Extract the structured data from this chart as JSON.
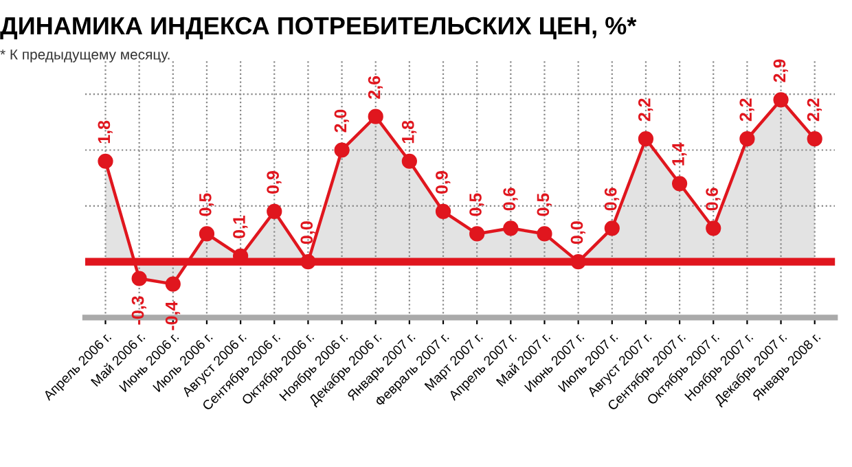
{
  "chart_data": {
    "type": "area",
    "title": "ДИНАМИКА ИНДЕКСА ПОТРЕБИТЕЛЬСКИХ ЦЕН, %*",
    "subtitle": "* К предыдущему месяцу.",
    "categories": [
      "Апрель 2006 г.",
      "Май 2006 г.",
      "Июнь 2006 г.",
      "Июль 2006 г.",
      "Август 2006 г.",
      "Сентябрь 2006 г.",
      "Октябрь 2006 г.",
      "Ноябрь 2006 г.",
      "Декабрь 2006 г.",
      "Январь 2007 г.",
      "Февраль 2007 г.",
      "Март 2007 г.",
      "Апрель 2007 г.",
      "Май 2007 г.",
      "Июнь 2007 г.",
      "Июль 2007 г.",
      "Август 2007 г.",
      "Сентябрь 2007 г.",
      "Октябрь 2007 г.",
      "Ноябрь 2007 г.",
      "Декабрь 2007 г.",
      "Январь 2008 г."
    ],
    "series": [
      {
        "color": "#e0161e",
        "values": [
          1.8,
          -0.3,
          -0.4,
          0.5,
          0.1,
          0.9,
          0.0,
          2.0,
          2.6,
          1.8,
          0.9,
          0.5,
          0.6,
          0.5,
          0.0,
          0.6,
          2.2,
          1.4,
          0.6,
          2.2,
          2.9,
          2.2
        ],
        "value_labels": [
          "1,8",
          "-0,3",
          "-0,4",
          "0,5",
          "0,1",
          "0,9",
          "0,0",
          "2,0",
          "2,6",
          "1,8",
          "0,9",
          "0,5",
          "0,6",
          "0,5",
          "0,0",
          "0,6",
          "2,2",
          "1,4",
          "0,6",
          "2,2",
          "2,9",
          "2,2"
        ]
      }
    ],
    "ylim": [
      -1,
      3.6
    ],
    "yticks": [
      {
        "value": 0,
        "label": null
      },
      {
        "value": 1,
        "label": null
      },
      {
        "value": 2,
        "label": null
      },
      {
        "value": 3,
        "label": null
      }
    ],
    "tick_labels": "x",
    "grid": true,
    "marker": "circle",
    "line_style": "solid",
    "ref_lines": [
      {
        "axis": "y",
        "value": 0,
        "color": "#e0161e"
      }
    ]
  }
}
